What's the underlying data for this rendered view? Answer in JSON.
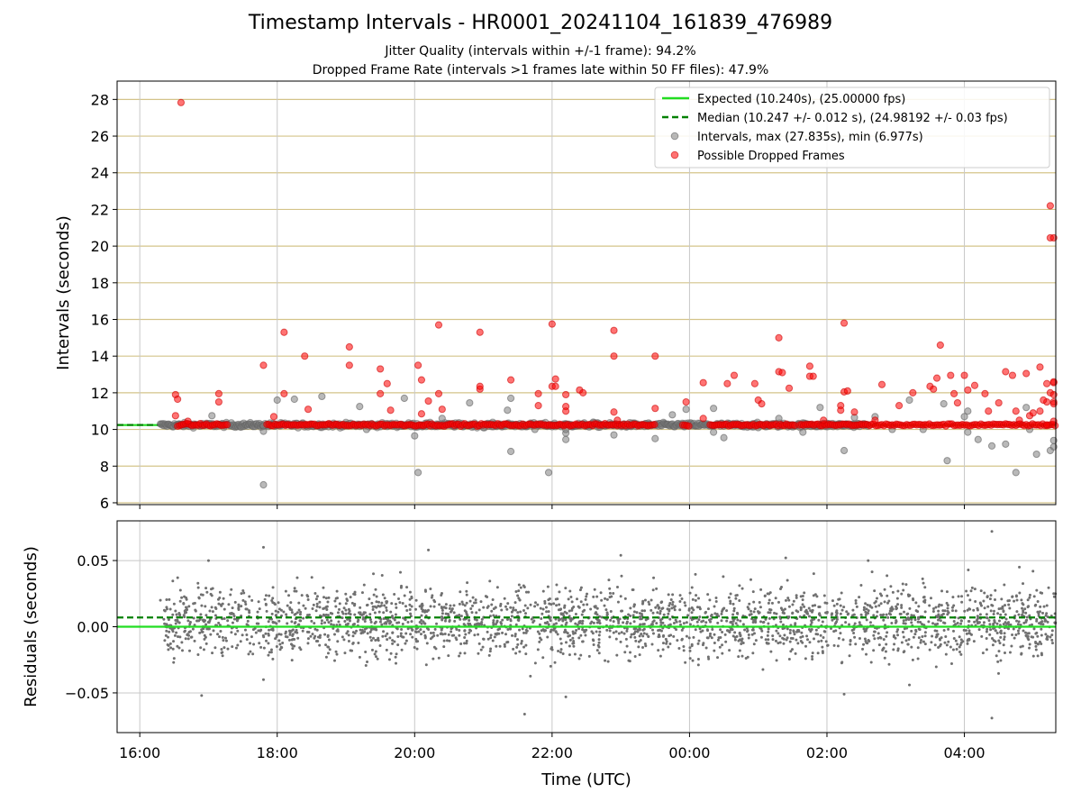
{
  "chart_data": [
    {
      "type": "scatter",
      "title": "Timestamp Intervals - HR0001_20241104_161839_476989",
      "subtitle_lines": [
        "Jitter Quality (intervals within +/-1 frame): 94.2%",
        "Dropped Frame Rate (intervals >1 frames late within 50 FF files): 47.9%"
      ],
      "xlabel": "",
      "ylabel": "Intervals (seconds)",
      "x_axis": {
        "type": "time",
        "unit": "hours since 16:00 UTC (2024-11-04)",
        "range": [
          -0.33,
          13.33
        ],
        "tick_values": [
          0,
          2,
          4,
          6,
          8,
          10,
          12
        ],
        "tick_labels": [
          "16:00",
          "18:00",
          "20:00",
          "22:00",
          "00:00",
          "02:00",
          "04:00"
        ]
      },
      "ylim": [
        5.9,
        29.0
      ],
      "y_ticks": [
        6,
        8,
        10,
        12,
        14,
        16,
        18,
        20,
        22,
        24,
        26,
        28
      ],
      "y_tick_labels": [
        "6",
        "8",
        "10",
        "12",
        "14",
        "16",
        "18",
        "20",
        "22",
        "24",
        "26",
        "28"
      ],
      "grid": true,
      "legend_position": "top-right",
      "legend": [
        {
          "label": "Expected (10.240s), (25.00000 fps)",
          "style": "line",
          "color": "#22dd22"
        },
        {
          "label": "Median (10.247 +/- 0.012 s), (24.98192 +/- 0.03 fps)",
          "style": "dashed-line",
          "color": "#008000"
        },
        {
          "label": "Intervals, max (27.835s), min (6.977s)",
          "style": "marker",
          "color": "#808080"
        },
        {
          "label": "Possible Dropped Frames",
          "style": "marker",
          "color": "#ff0000"
        }
      ],
      "expected_interval": 10.24,
      "median_interval": 10.247,
      "baseline_band": {
        "x_start": 0.3,
        "x_end": 10.6,
        "y": 10.24
      },
      "series": [
        {
          "name": "Intervals, max (27.835s), min (6.977s)",
          "color": "#808080",
          "points": [
            [
              1.8,
              6.98
            ],
            [
              2.0,
              11.6
            ],
            [
              2.25,
              11.65
            ],
            [
              2.65,
              11.8
            ],
            [
              1.0,
              10.3
            ],
            [
              1.05,
              10.75
            ],
            [
              1.8,
              10.2
            ],
            [
              1.8,
              9.9
            ],
            [
              3.2,
              11.25
            ],
            [
              3.3,
              10.0
            ],
            [
              3.85,
              11.7
            ],
            [
              4.0,
              9.65
            ],
            [
              4.05,
              7.65
            ],
            [
              4.4,
              10.6
            ],
            [
              4.8,
              11.45
            ],
            [
              5.0,
              10.1
            ],
            [
              5.35,
              11.05
            ],
            [
              5.4,
              11.7
            ],
            [
              5.4,
              8.8
            ],
            [
              5.75,
              10.0
            ],
            [
              5.95,
              7.65
            ],
            [
              6.2,
              9.8
            ],
            [
              6.2,
              10.0
            ],
            [
              6.2,
              9.45
            ],
            [
              6.6,
              10.4
            ],
            [
              6.9,
              9.7
            ],
            [
              7.5,
              9.5
            ],
            [
              7.75,
              10.8
            ],
            [
              7.95,
              11.1
            ],
            [
              8.35,
              11.15
            ],
            [
              8.35,
              9.85
            ],
            [
              8.5,
              9.55
            ],
            [
              9.0,
              10.1
            ],
            [
              9.3,
              10.6
            ],
            [
              9.65,
              9.85
            ],
            [
              9.9,
              11.2
            ],
            [
              10.2,
              10.3
            ],
            [
              10.25,
              8.85
            ],
            [
              10.4,
              10.65
            ],
            [
              10.7,
              10.7
            ],
            [
              11.2,
              11.6
            ],
            [
              11.7,
              11.4
            ],
            [
              11.75,
              8.3
            ],
            [
              12.0,
              10.7
            ],
            [
              12.05,
              11.0
            ],
            [
              12.05,
              9.85
            ],
            [
              12.2,
              9.45
            ],
            [
              12.4,
              9.1
            ],
            [
              12.6,
              9.2
            ],
            [
              12.75,
              7.65
            ],
            [
              12.9,
              11.2
            ],
            [
              12.95,
              10.0
            ],
            [
              13.05,
              8.65
            ],
            [
              13.3,
              9.4
            ],
            [
              13.25,
              8.85
            ],
            [
              13.3,
              9.05
            ],
            [
              11.4,
              10.0
            ],
            [
              10.95,
              10.0
            ]
          ]
        },
        {
          "name": "Possible Dropped Frames",
          "color": "#ff0000",
          "baseline_segments": [
            [
              0.55,
              1.3
            ],
            [
              1.85,
              7.5
            ],
            [
              7.9,
              8.0
            ],
            [
              8.3,
              9.55
            ],
            [
              9.6,
              13.33
            ]
          ],
          "baseline_value": 10.25,
          "points": [
            [
              0.6,
              27.83
            ],
            [
              0.52,
              11.9
            ],
            [
              0.55,
              11.65
            ],
            [
              0.52,
              10.75
            ],
            [
              0.7,
              10.45
            ],
            [
              1.15,
              11.95
            ],
            [
              1.15,
              11.5
            ],
            [
              1.8,
              13.5
            ],
            [
              1.95,
              10.7
            ],
            [
              2.1,
              11.95
            ],
            [
              2.1,
              15.3
            ],
            [
              2.4,
              14.0
            ],
            [
              2.45,
              11.1
            ],
            [
              3.05,
              14.5
            ],
            [
              3.05,
              13.5
            ],
            [
              3.5,
              13.3
            ],
            [
              3.5,
              11.95
            ],
            [
              3.6,
              12.5
            ],
            [
              3.65,
              11.05
            ],
            [
              4.05,
              13.5
            ],
            [
              4.1,
              12.7
            ],
            [
              4.1,
              10.85
            ],
            [
              4.2,
              11.55
            ],
            [
              4.35,
              11.95
            ],
            [
              4.35,
              15.7
            ],
            [
              4.4,
              11.1
            ],
            [
              4.95,
              15.3
            ],
            [
              4.95,
              12.2
            ],
            [
              4.95,
              12.35
            ],
            [
              5.4,
              12.7
            ],
            [
              5.8,
              11.95
            ],
            [
              5.8,
              11.3
            ],
            [
              6.05,
              12.75
            ],
            [
              6.0,
              15.75
            ],
            [
              6.0,
              12.35
            ],
            [
              6.05,
              12.35
            ],
            [
              6.2,
              11.9
            ],
            [
              6.2,
              11.25
            ],
            [
              6.2,
              11.0
            ],
            [
              6.4,
              12.15
            ],
            [
              6.45,
              12.0
            ],
            [
              6.9,
              14.0
            ],
            [
              6.9,
              15.4
            ],
            [
              6.9,
              10.95
            ],
            [
              6.95,
              10.5
            ],
            [
              7.5,
              14.0
            ],
            [
              7.5,
              11.15
            ],
            [
              7.95,
              11.5
            ],
            [
              8.2,
              10.6
            ],
            [
              8.2,
              12.55
            ],
            [
              8.55,
              12.5
            ],
            [
              8.65,
              12.95
            ],
            [
              8.95,
              12.5
            ],
            [
              9.0,
              11.6
            ],
            [
              9.05,
              11.4
            ],
            [
              9.3,
              15.0
            ],
            [
              9.3,
              13.15
            ],
            [
              9.35,
              13.1
            ],
            [
              9.45,
              12.25
            ],
            [
              9.75,
              13.45
            ],
            [
              9.75,
              12.9
            ],
            [
              9.8,
              12.9
            ],
            [
              9.95,
              10.5
            ],
            [
              10.2,
              11.3
            ],
            [
              10.2,
              11.05
            ],
            [
              10.25,
              12.05
            ],
            [
              10.25,
              15.8
            ],
            [
              10.3,
              12.1
            ],
            [
              10.4,
              10.95
            ],
            [
              10.7,
              10.5
            ],
            [
              10.8,
              12.45
            ],
            [
              11.05,
              11.3
            ],
            [
              11.25,
              12.0
            ],
            [
              11.5,
              12.35
            ],
            [
              11.55,
              12.2
            ],
            [
              11.6,
              12.8
            ],
            [
              11.65,
              14.6
            ],
            [
              11.8,
              12.95
            ],
            [
              11.85,
              11.95
            ],
            [
              11.9,
              11.45
            ],
            [
              12.0,
              12.95
            ],
            [
              12.05,
              12.15
            ],
            [
              12.15,
              12.4
            ],
            [
              12.3,
              11.95
            ],
            [
              12.35,
              11.0
            ],
            [
              12.5,
              11.45
            ],
            [
              12.6,
              13.15
            ],
            [
              12.7,
              12.95
            ],
            [
              12.75,
              11.0
            ],
            [
              12.8,
              10.5
            ],
            [
              12.9,
              13.05
            ],
            [
              12.95,
              10.75
            ],
            [
              13.0,
              10.9
            ],
            [
              13.1,
              13.4
            ],
            [
              13.2,
              12.5
            ],
            [
              13.3,
              12.55
            ],
            [
              13.25,
              12.0
            ],
            [
              13.3,
              11.5
            ],
            [
              13.1,
              11.0
            ],
            [
              13.2,
              11.5
            ],
            [
              13.3,
              10.45
            ],
            [
              13.2,
              10.25
            ],
            [
              13.25,
              20.45
            ],
            [
              13.3,
              20.45
            ],
            [
              13.25,
              22.2
            ],
            [
              13.3,
              11.4
            ],
            [
              13.3,
              11.9
            ],
            [
              13.3,
              12.6
            ],
            [
              13.15,
              11.6
            ]
          ]
        }
      ]
    },
    {
      "type": "scatter",
      "title": "",
      "xlabel": "Time (UTC)",
      "ylabel": "Residuals (seconds)",
      "x_axis": {
        "type": "time",
        "unit": "hours since 16:00 UTC (2024-11-04)",
        "range": [
          -0.33,
          13.33
        ],
        "tick_values": [
          0,
          2,
          4,
          6,
          8,
          10,
          12
        ],
        "tick_labels": [
          "16:00",
          "18:00",
          "20:00",
          "22:00",
          "00:00",
          "02:00",
          "04:00"
        ]
      },
      "ylim": [
        -0.08,
        0.08
      ],
      "y_ticks": [
        -0.05,
        0.0,
        0.05
      ],
      "y_tick_labels": [
        "−0.05",
        "0.00",
        "0.05"
      ],
      "grid": true,
      "expected_line": 0.0,
      "median_line": 0.007,
      "series": [
        {
          "name": "",
          "color": "#808080",
          "description_points": [
            [
              0.3,
              0.02
            ],
            [
              1.0,
              0.05
            ],
            [
              0.9,
              -0.052
            ],
            [
              1.8,
              0.06
            ],
            [
              1.8,
              -0.04
            ],
            [
              3.4,
              0.04
            ],
            [
              4.2,
              0.058
            ],
            [
              5.6,
              0.03
            ],
            [
              5.6,
              -0.066
            ],
            [
              6.2,
              -0.053
            ],
            [
              7.0,
              0.054
            ],
            [
              9.4,
              0.052
            ],
            [
              10.25,
              -0.051
            ],
            [
              10.6,
              0.05
            ],
            [
              11.2,
              -0.044
            ],
            [
              12.4,
              0.072
            ],
            [
              12.4,
              -0.069
            ],
            [
              12.8,
              0.045
            ],
            [
              13.3,
              0.025
            ]
          ],
          "value_range": [
            -0.069,
            0.072
          ],
          "value_spread": 0.013,
          "x_range": [
            0.35,
            13.33
          ],
          "approximate_point_count": 2600
        }
      ]
    }
  ]
}
